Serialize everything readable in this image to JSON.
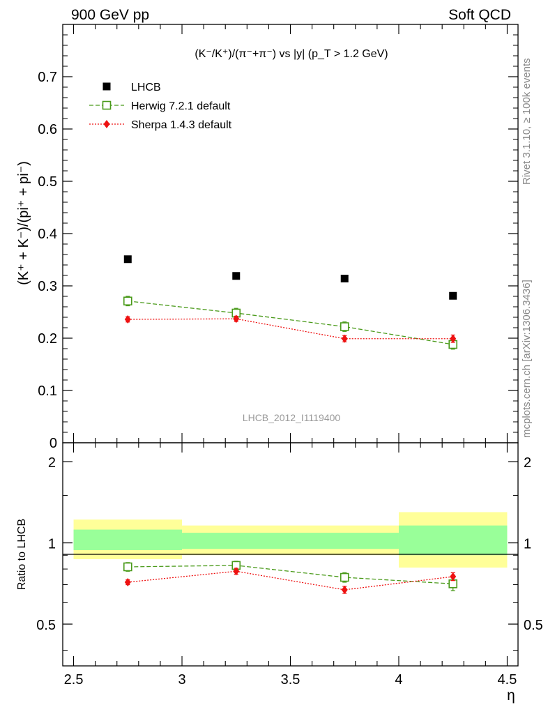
{
  "header": {
    "left": "900 GeV pp",
    "right": "Soft QCD"
  },
  "side_labels": {
    "rivet": "Rivet 3.1.10, ≥ 100k events",
    "mcplots": "mcplots.cern.ch [arXiv:1306.3436]"
  },
  "chart_data": [
    {
      "type": "scatter",
      "title": "(K⁻/K⁺)/(π⁻+π⁻) vs |y| (p_T > 1.2 GeV)",
      "xlabel": "η",
      "ylabel": "(K⁺ + K⁻)/(pi⁺ + pi⁻)",
      "watermark": "LHCB_2012_I1119400",
      "xlim": [
        2.45,
        4.55
      ],
      "ylim": [
        0,
        0.8
      ],
      "x_ticks": [
        2.5,
        3,
        3.5,
        4,
        4.5
      ],
      "y_ticks": [
        0.1,
        0.2,
        0.3,
        0.4,
        0.5,
        0.6,
        0.7
      ],
      "y_tick_labels": [
        "0.1",
        "0.2",
        "0.3",
        "0.4",
        "0.5",
        "0.6",
        "0.7"
      ],
      "zero_label": "0",
      "legend_position": "top-left",
      "series": [
        {
          "name": "LHCB",
          "color": "#000000",
          "marker": "filled-square",
          "line": "none",
          "x": [
            2.75,
            3.25,
            3.75,
            4.25
          ],
          "y": [
            0.351,
            0.319,
            0.314,
            0.281
          ],
          "yerr": [
            0,
            0,
            0,
            0
          ]
        },
        {
          "name": "Herwig 7.2.1 default",
          "color": "#4a9a1a",
          "marker": "open-square",
          "line": "dashed",
          "x": [
            2.75,
            3.25,
            3.75,
            4.25
          ],
          "y": [
            0.271,
            0.248,
            0.222,
            0.188
          ],
          "yerr": [
            0.009,
            0.009,
            0.009,
            0.009
          ]
        },
        {
          "name": "Sherpa 1.4.3 default",
          "color": "#ee1111",
          "marker": "filled-diamond",
          "line": "dotted",
          "x": [
            2.75,
            3.25,
            3.75,
            4.25
          ],
          "y": [
            0.236,
            0.237,
            0.199,
            0.199
          ],
          "yerr": [
            0.005,
            0.005,
            0.006,
            0.007
          ]
        }
      ]
    },
    {
      "type": "scatter",
      "ylabel": "Ratio to LHCB",
      "xlabel": "η",
      "xlim": [
        2.45,
        4.55
      ],
      "ylim": [
        0.35,
        2.35
      ],
      "y_ticks": [
        0.5,
        1,
        2
      ],
      "y_tick_labels": [
        "0.5",
        "1",
        "2"
      ],
      "x_tick_labels": [
        "2.5",
        "3",
        "3.5",
        "4",
        "4.5"
      ],
      "bands": [
        {
          "x": [
            2.5,
            3.0
          ],
          "yellow": [
            0.87,
            1.22
          ],
          "green": [
            0.94,
            1.12
          ]
        },
        {
          "x": [
            3.0,
            3.5
          ],
          "yellow": [
            0.9,
            1.16
          ],
          "green": [
            0.95,
            1.09
          ]
        },
        {
          "x": [
            3.5,
            4.0
          ],
          "yellow": [
            0.9,
            1.16
          ],
          "green": [
            0.95,
            1.09
          ]
        },
        {
          "x": [
            4.0,
            4.5
          ],
          "yellow": [
            0.81,
            1.3
          ],
          "green": [
            0.9,
            1.16
          ]
        }
      ],
      "series": [
        {
          "name": "Herwig 7.2.1 default",
          "color": "#4a9a1a",
          "marker": "open-square",
          "line": "dashed",
          "x": [
            2.75,
            3.25,
            3.75,
            4.25
          ],
          "y": [
            0.815,
            0.825,
            0.745,
            0.705
          ],
          "yerr": [
            0.03,
            0.03,
            0.03,
            0.04
          ]
        },
        {
          "name": "Sherpa 1.4.3 default",
          "color": "#ee1111",
          "marker": "filled-diamond",
          "line": "dotted",
          "x": [
            2.75,
            3.25,
            3.75,
            4.25
          ],
          "y": [
            0.715,
            0.785,
            0.67,
            0.75
          ],
          "yerr": [
            0.015,
            0.02,
            0.02,
            0.025
          ]
        }
      ]
    }
  ]
}
